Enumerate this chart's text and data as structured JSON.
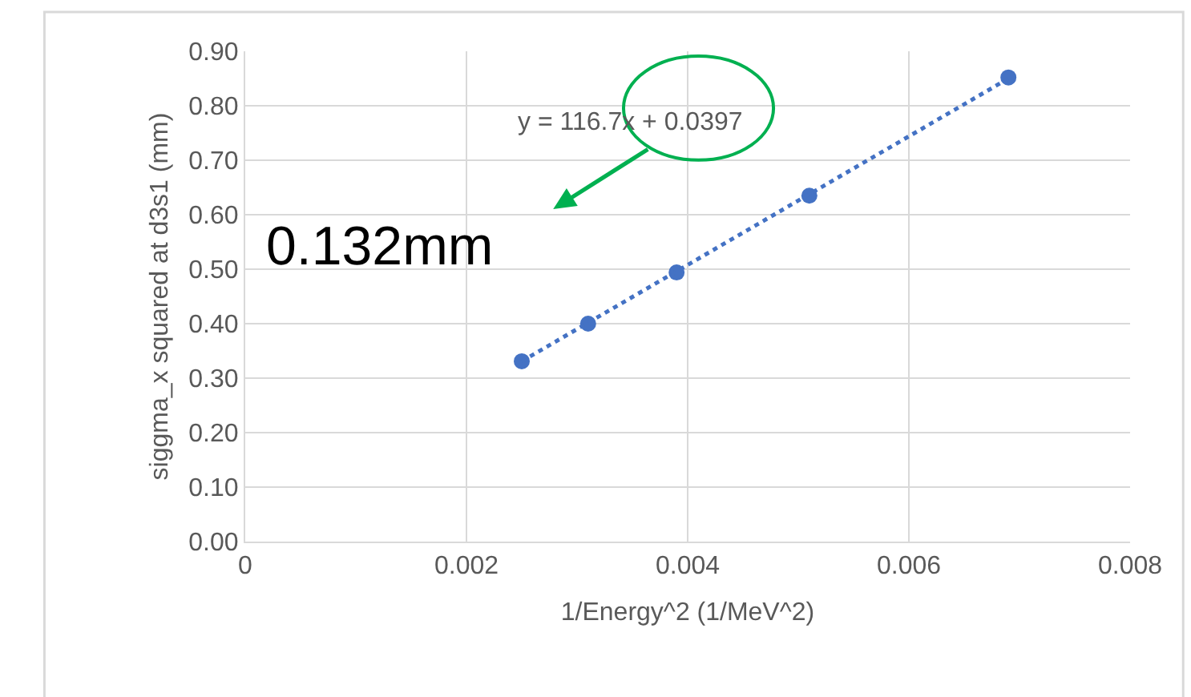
{
  "chart_data": {
    "type": "scatter",
    "xlabel": "1/Energy^2 (1/MeV^2)",
    "ylabel": "siggma_x squared at d3s1 (mm)",
    "series": [
      {
        "color": "#4472c4",
        "marker": "circle",
        "x": [
          0.0025,
          0.0031,
          0.0039,
          0.0051,
          0.0069
        ],
        "values": [
          0.331,
          0.4,
          0.494,
          0.635,
          0.852
        ]
      },
      {
        "type": "line",
        "color": "#4472c4",
        "marker": "none",
        "line_style": "dotted",
        "x": [
          0.0025,
          0.0069
        ],
        "values": [
          0.331,
          0.85
        ]
      }
    ],
    "xlim": [
      0,
      0.008
    ],
    "xticks": [
      0,
      0.002,
      0.004,
      0.006,
      0.008
    ],
    "ylim": [
      0,
      0.9
    ],
    "yticks": [
      {
        "value": 0,
        "label": "0.00"
      },
      {
        "value": 0.1,
        "label": "0.10"
      },
      {
        "value": 0.2,
        "label": "0.20"
      },
      {
        "value": 0.3,
        "label": "0.30"
      },
      {
        "value": 0.4,
        "label": "0.40"
      },
      {
        "value": 0.5,
        "label": "0.50"
      },
      {
        "value": 0.6,
        "label": "0.60"
      },
      {
        "value": 0.7,
        "label": "0.70"
      },
      {
        "value": 0.8,
        "label": "0.80"
      },
      {
        "value": 0.9,
        "label": "0.90"
      }
    ],
    "annotations": [
      "y = 116.7x + 0.0397",
      "0.132mm"
    ],
    "grid": true
  }
}
